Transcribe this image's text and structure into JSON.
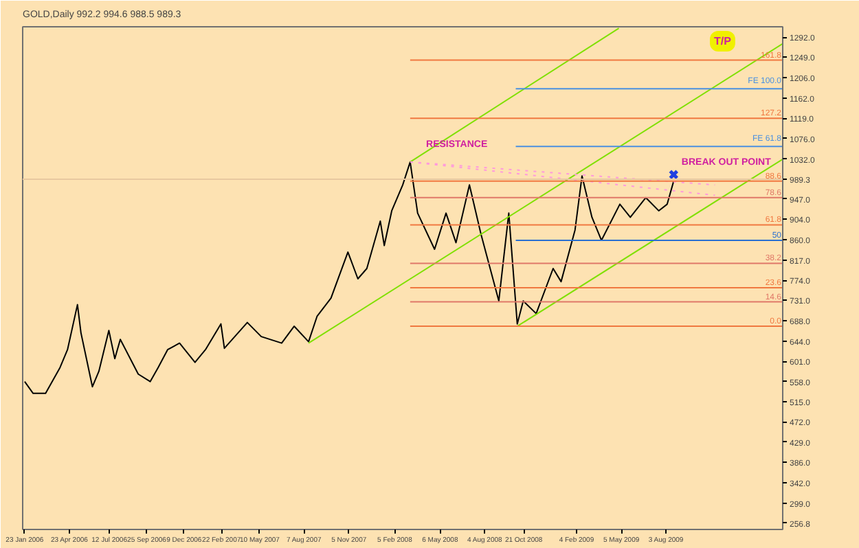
{
  "chart_data": {
    "type": "line",
    "title": "GOLD,Daily  992.2 994.6 988.5 989.3",
    "xlim": [
      "2006-01-19",
      "2010-03-25"
    ],
    "ylim": [
      243,
      1314
    ],
    "xticks": [
      {
        "value": "2006-01-23",
        "label": "23 Jan 2006"
      },
      {
        "value": "2006-04-23",
        "label": "23 Apr 2006"
      },
      {
        "value": "2006-07-12",
        "label": "12 Jul 2006"
      },
      {
        "value": "2006-09-25",
        "label": "25 Sep 2006"
      },
      {
        "value": "2006-12-09",
        "label": "9 Dec 2006"
      },
      {
        "value": "2007-02-22",
        "label": "22 Feb 2007"
      },
      {
        "value": "2007-05-10",
        "label": "10 May 2007"
      },
      {
        "value": "2007-08-07",
        "label": "7 Aug 2007"
      },
      {
        "value": "2007-11-05",
        "label": "5 Nov 2007"
      },
      {
        "value": "2008-02-05",
        "label": "5 Feb 2008"
      },
      {
        "value": "2008-05-06",
        "label": "6 May 2008"
      },
      {
        "value": "2008-08-04",
        "label": "4 Aug 2008"
      },
      {
        "value": "2008-10-21",
        "label": "21 Oct 2008"
      },
      {
        "value": "2009-02-04",
        "label": "4 Feb 2009"
      },
      {
        "value": "2009-05-05",
        "label": "5 May 2009"
      },
      {
        "value": "2009-08-03",
        "label": "3 Aug 2009"
      }
    ],
    "yticks": [
      {
        "value": 1292,
        "label": "1292.0"
      },
      {
        "value": 1249,
        "label": "1249.0"
      },
      {
        "value": 1206,
        "label": "1206.0"
      },
      {
        "value": 1162,
        "label": "1162.0"
      },
      {
        "value": 1119,
        "label": "1119.0"
      },
      {
        "value": 1076,
        "label": "1076.0"
      },
      {
        "value": 1032,
        "label": "1032.0"
      },
      {
        "value": 947,
        "label": "947.0"
      },
      {
        "value": 904,
        "label": "904.0"
      },
      {
        "value": 860,
        "label": "860.0"
      },
      {
        "value": 817,
        "label": "817.0"
      },
      {
        "value": 774,
        "label": "774.0"
      },
      {
        "value": 731,
        "label": "731.0"
      },
      {
        "value": 688,
        "label": "688.0"
      },
      {
        "value": 644,
        "label": "644.0"
      },
      {
        "value": 601,
        "label": "601.0"
      },
      {
        "value": 558,
        "label": "558.0"
      },
      {
        "value": 515,
        "label": "515.0"
      },
      {
        "value": 472,
        "label": "472.0"
      },
      {
        "value": 429,
        "label": "429.0"
      },
      {
        "value": 386,
        "label": "386.0"
      },
      {
        "value": 342,
        "label": "342.0"
      },
      {
        "value": 299,
        "label": "299.0"
      },
      {
        "value": 256.8,
        "label": "256.8"
      }
    ],
    "grid": false,
    "ref_lines": [
      {
        "axis": "y",
        "value": 989.3,
        "label": "989.3",
        "color": "#e8c8a0"
      }
    ],
    "series": [
      {
        "color": "#000000",
        "x": [
          "2006-01-23",
          "2006-02-09",
          "2006-03-06",
          "2006-04-04",
          "2006-04-19",
          "2006-05-09",
          "2006-05-16",
          "2006-06-08",
          "2006-06-21",
          "2006-07-11",
          "2006-07-23",
          "2006-08-03",
          "2006-09-08",
          "2006-10-02",
          "2006-10-18",
          "2006-11-06",
          "2006-11-30",
          "2006-12-31",
          "2007-01-21",
          "2007-02-21",
          "2007-02-28",
          "2007-04-15",
          "2007-05-13",
          "2007-06-23",
          "2007-07-18",
          "2007-08-16",
          "2007-09-02",
          "2007-09-30",
          "2007-11-03",
          "2007-11-23",
          "2007-12-11",
          "2008-01-07",
          "2008-01-15",
          "2008-01-30",
          "2008-02-21",
          "2008-03-07",
          "2008-03-22",
          "2008-04-25",
          "2008-05-18",
          "2008-06-07",
          "2008-07-04",
          "2008-07-27",
          "2008-09-01",
          "2008-09-21",
          "2008-10-08",
          "2008-10-20",
          "2008-11-15",
          "2008-12-19",
          "2009-01-04",
          "2009-02-01",
          "2009-02-15",
          "2009-03-07",
          "2009-03-26",
          "2009-05-02",
          "2009-05-23",
          "2009-06-23",
          "2009-07-19",
          "2009-08-05",
          "2009-08-18"
        ],
        "values": [
          558,
          533,
          533,
          588,
          626,
          722,
          662,
          547,
          580,
          667,
          607,
          648,
          574,
          558,
          588,
          626,
          640,
          599,
          626,
          681,
          629,
          684,
          654,
          640,
          676,
          643,
          697,
          736,
          834,
          777,
          799,
          900,
          848,
          922,
          977,
          1026,
          917,
          840,
          917,
          854,
          977,
          873,
          730,
          917,
          681,
          730,
          703,
          799,
          771,
          881,
          996,
          908,
          859,
          936,
          908,
          950,
          922,
          936,
          985
        ]
      },
      {
        "color": "#7fe000",
        "x": [
          "2008-03-07",
          "2009-04-30"
        ],
        "values": [
          1026,
          1311
        ]
      },
      {
        "color": "#7fe000",
        "x": [
          "2007-08-16",
          "2010-03-25"
        ],
        "values": [
          640,
          1278
        ]
      },
      {
        "color": "#7fe000",
        "x": [
          "2008-10-08",
          "2010-03-25"
        ],
        "values": [
          676,
          1032
        ]
      },
      {
        "color": "#ff99dd",
        "line_style": "dotted",
        "x": [
          "2008-03-07",
          "2009-11-09"
        ],
        "values": [
          1026,
          977
        ]
      },
      {
        "color": "#ff99dd",
        "line_style": "dotted",
        "x": [
          "2008-03-07",
          "2009-11-09"
        ],
        "values": [
          1026,
          955
        ]
      },
      {
        "name": "161.8",
        "color": "#f07840",
        "x": [
          "2008-03-07",
          "2010-03-25"
        ],
        "values": [
          1243,
          1243
        ]
      },
      {
        "name": "FE 100.0",
        "color": "#4a90e0",
        "x": [
          "2008-10-05",
          "2010-03-25"
        ],
        "values": [
          1182,
          1182
        ]
      },
      {
        "name": "127.2",
        "color": "#f07840",
        "x": [
          "2008-03-07",
          "2010-03-25"
        ],
        "values": [
          1119,
          1119
        ]
      },
      {
        "name": "FE 61.8",
        "color": "#4a90e0",
        "x": [
          "2008-10-05",
          "2010-03-25"
        ],
        "values": [
          1059,
          1059
        ]
      },
      {
        "name": "88.6",
        "color": "#f07840",
        "x": [
          "2008-03-07",
          "2010-03-25"
        ],
        "values": [
          985,
          985
        ]
      },
      {
        "name": "78.6",
        "color": "#e07868",
        "x": [
          "2008-03-07",
          "2010-03-25"
        ],
        "values": [
          950,
          950
        ]
      },
      {
        "name": "61.8",
        "color": "#f07840",
        "x": [
          "2008-03-07",
          "2010-03-25"
        ],
        "values": [
          892,
          892
        ]
      },
      {
        "name": "50",
        "color": "#2a70d0",
        "x": [
          "2008-10-05",
          "2010-03-25"
        ],
        "values": [
          859,
          859
        ]
      },
      {
        "name": "38.2",
        "color": "#e07868",
        "x": [
          "2008-03-07",
          "2010-03-25"
        ],
        "values": [
          810,
          810
        ]
      },
      {
        "name": "23.6",
        "color": "#f07840",
        "x": [
          "2008-03-07",
          "2010-03-25"
        ],
        "values": [
          758,
          758
        ]
      },
      {
        "name": "14.6",
        "color": "#e07868",
        "x": [
          "2008-03-07",
          "2010-03-25"
        ],
        "values": [
          728,
          728
        ]
      },
      {
        "name": "0.0",
        "color": "#f07840",
        "x": [
          "2008-03-07",
          "2010-03-25"
        ],
        "values": [
          676,
          676
        ]
      },
      {
        "type": "scatter",
        "marker": "cross",
        "color": "#2040e0",
        "x": [
          "2009-08-18"
        ],
        "values": [
          999
        ]
      }
    ],
    "annotations": [
      {
        "text": "RESISTANCE",
        "x": "2008-04-08",
        "y": 1037
      },
      {
        "text": "BREAK OUT POINT",
        "x": "2009-09-03",
        "y": 999
      },
      "T/P"
    ]
  }
}
